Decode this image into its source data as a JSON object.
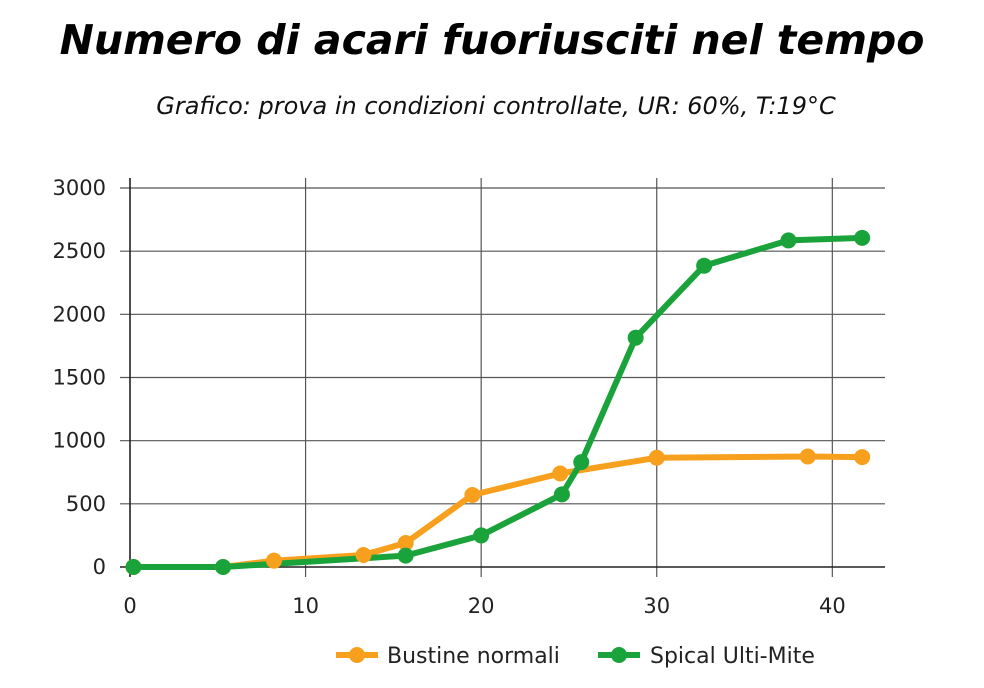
{
  "title": "Numero di acari fuoriusciti nel tempo",
  "subtitle": "Grafico: prova in condizioni controllate, UR: 60%, T:19°C",
  "chart_data": {
    "type": "line",
    "title": "Numero di acari fuoriusciti nel tempo",
    "subtitle": "Grafico: prova in condizioni controllate, UR: 60%, T:19°C",
    "xlabel": "",
    "ylabel": "",
    "xlim": [
      0,
      43
    ],
    "ylim": [
      0,
      3000
    ],
    "xticks": [
      0,
      10,
      20,
      30,
      40
    ],
    "yticks": [
      0,
      500,
      1000,
      1500,
      2000,
      2500,
      3000
    ],
    "grid": true,
    "legend_position": "bottom-right",
    "series": [
      {
        "name": "Bustine normali",
        "color": "#f7a01d",
        "x": [
          0.2,
          5.3,
          8.2,
          13.3,
          15.7,
          19.5,
          24.5,
          30.0,
          38.6,
          41.7
        ],
        "y": [
          0,
          0,
          50,
          95,
          190,
          570,
          740,
          865,
          875,
          870
        ]
      },
      {
        "name": "Spical Ulti-Mite",
        "color": "#1aa33a",
        "x": [
          0.2,
          5.3,
          15.7,
          20.0,
          24.6,
          25.7,
          28.8,
          32.7,
          37.5,
          41.7
        ],
        "y": [
          0,
          0,
          90,
          250,
          575,
          830,
          1815,
          2385,
          2585,
          2605
        ]
      }
    ]
  }
}
